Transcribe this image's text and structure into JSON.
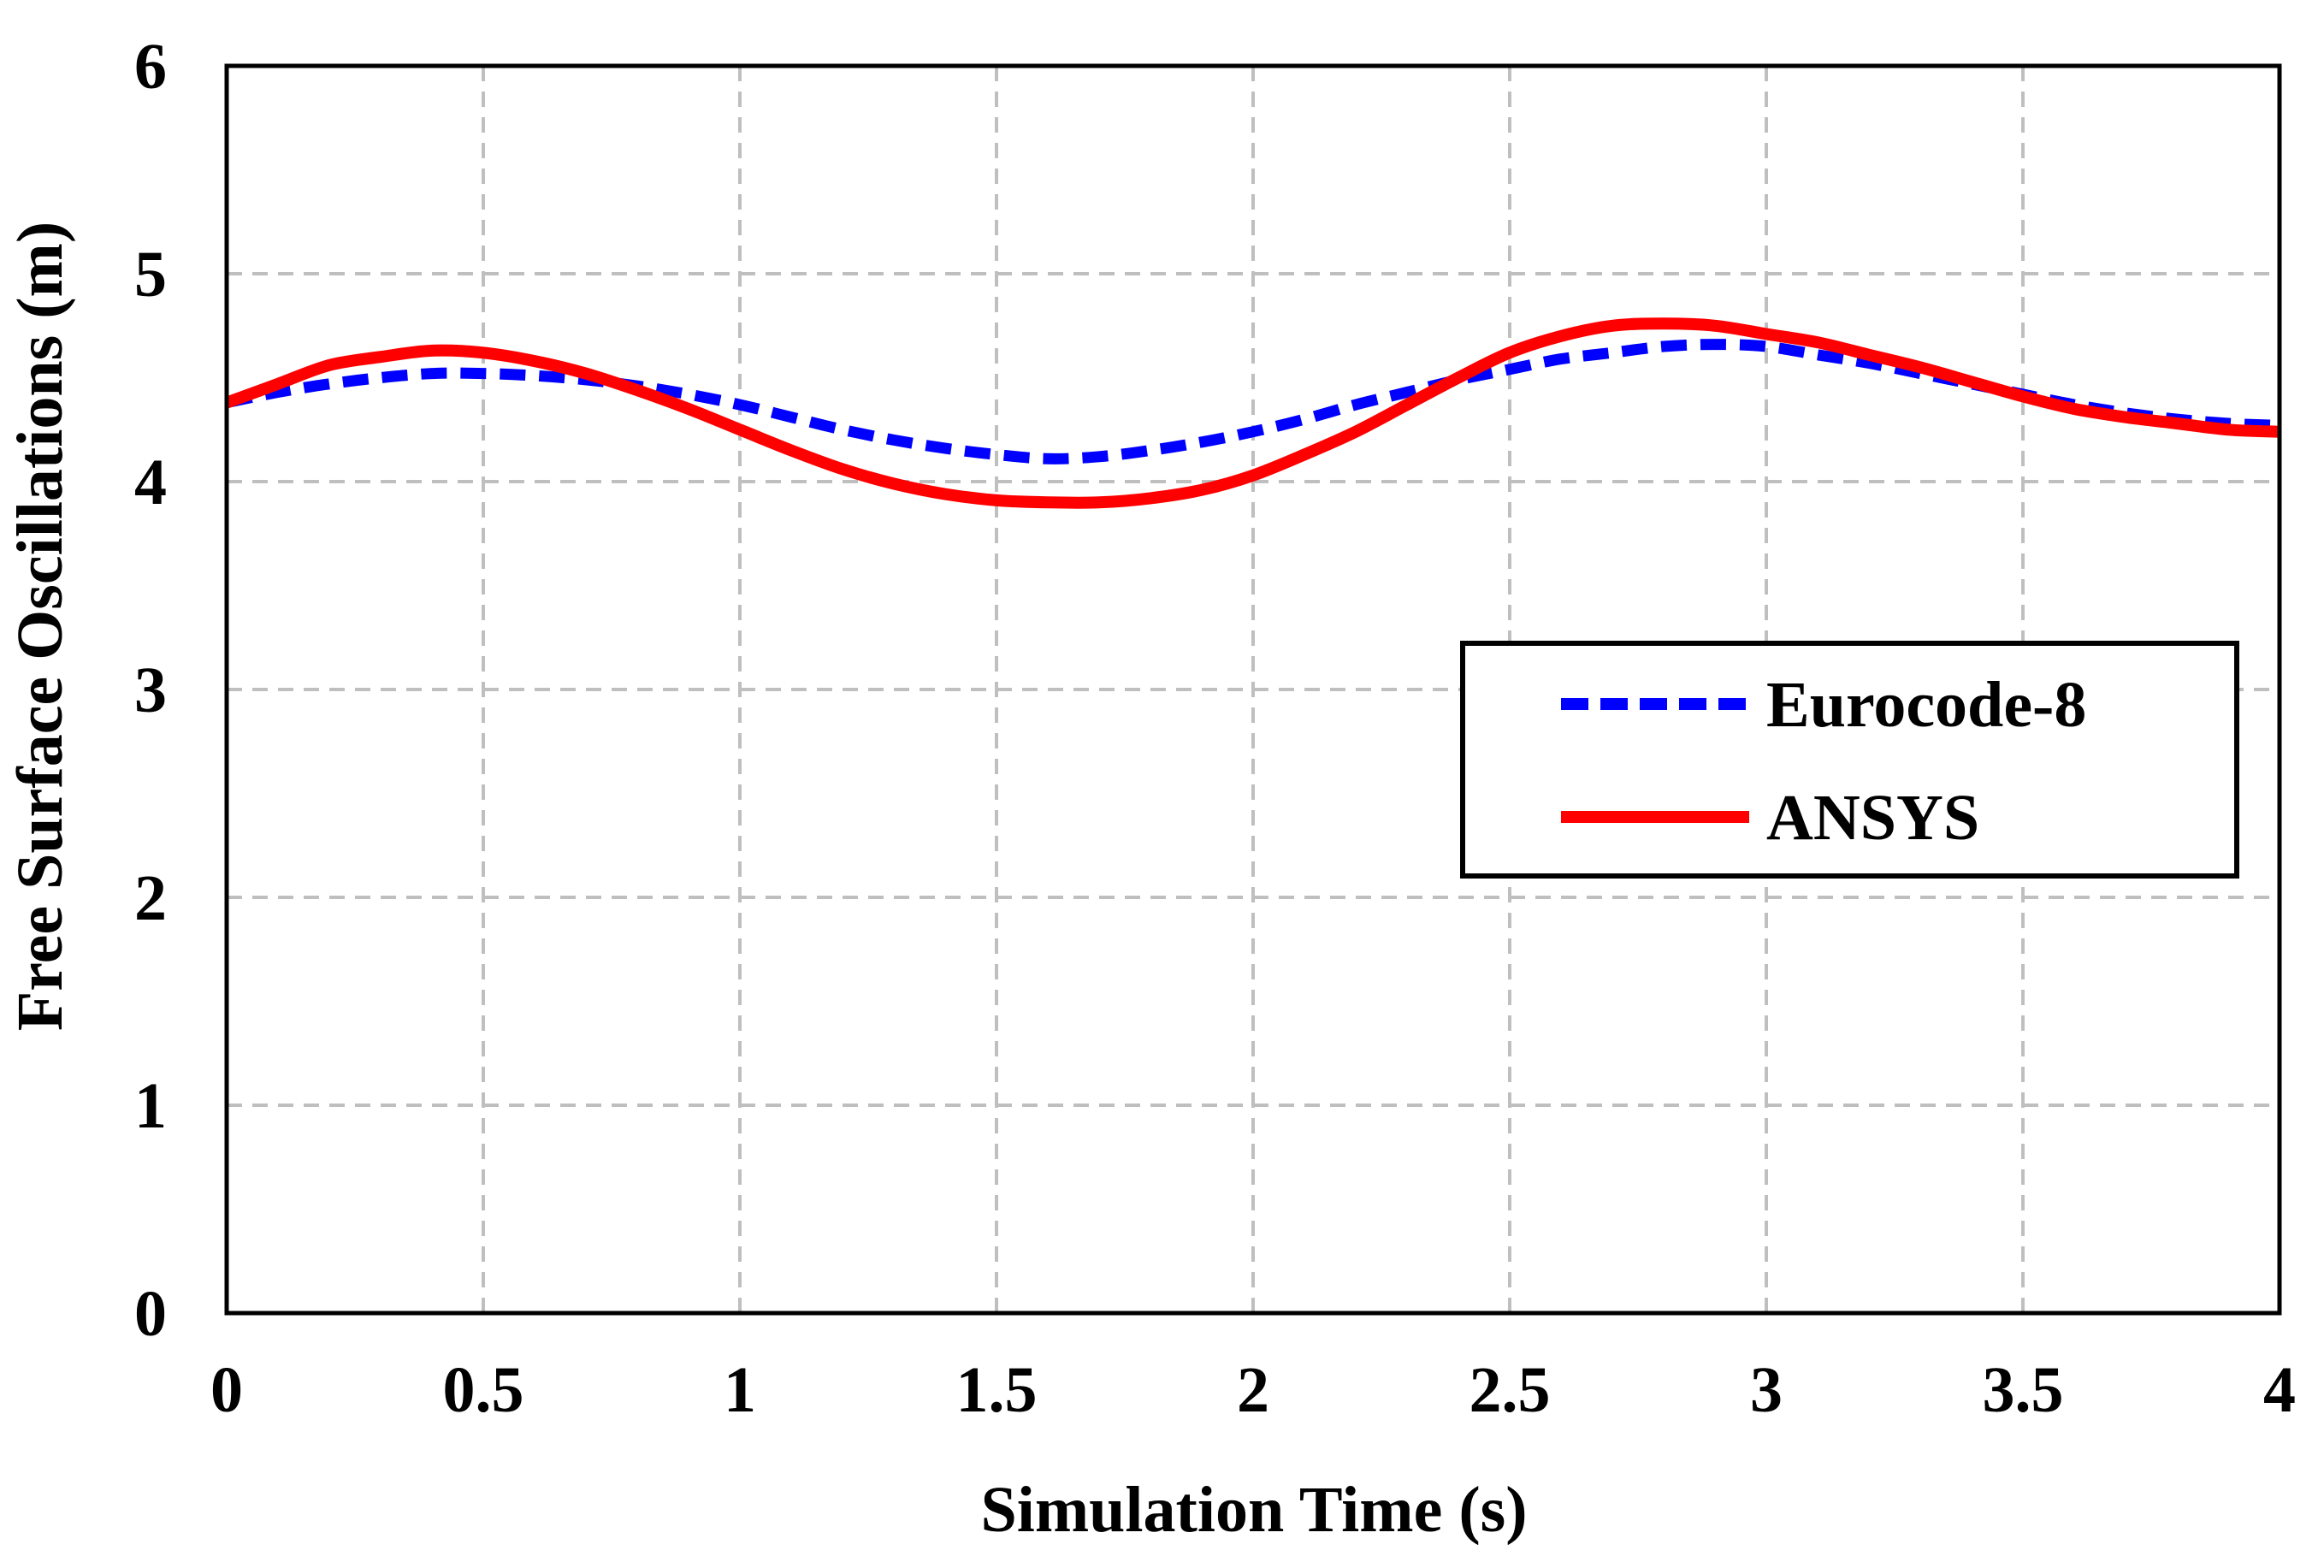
{
  "chart_data": {
    "type": "line",
    "title": "",
    "xlabel": "Simulation Time (s)",
    "ylabel": "Free Surface Oscillations (m)",
    "xlim": [
      0,
      4
    ],
    "ylim": [
      0,
      6
    ],
    "xticks": [
      0,
      0.5,
      1,
      1.5,
      2,
      2.5,
      3,
      3.5,
      4
    ],
    "yticks": [
      0,
      1,
      2,
      3,
      4,
      5,
      6
    ],
    "xtick_labels": [
      "0",
      "0.5",
      "1",
      "1.5",
      "2",
      "2.5",
      "3",
      "3.5",
      "4"
    ],
    "ytick_labels": [
      "0",
      "1",
      "2",
      "3",
      "4",
      "5",
      "6"
    ],
    "grid": true,
    "legend_position": "right",
    "series": [
      {
        "name": "Eurocode-8",
        "color": "#0000FF",
        "style": "dashed",
        "x": [
          0,
          0.1,
          0.2,
          0.3,
          0.4,
          0.5,
          0.6,
          0.7,
          0.8,
          0.9,
          1.0,
          1.1,
          1.2,
          1.3,
          1.4,
          1.5,
          1.6,
          1.7,
          1.8,
          1.9,
          2.0,
          2.1,
          2.2,
          2.3,
          2.4,
          2.5,
          2.6,
          2.7,
          2.8,
          2.9,
          3.0,
          3.1,
          3.2,
          3.3,
          3.4,
          3.5,
          3.6,
          3.7,
          3.8,
          3.9,
          4.0
        ],
        "y": [
          4.38,
          4.43,
          4.47,
          4.5,
          4.52,
          4.52,
          4.51,
          4.49,
          4.46,
          4.42,
          4.37,
          4.31,
          4.25,
          4.2,
          4.16,
          4.13,
          4.11,
          4.12,
          4.15,
          4.19,
          4.24,
          4.3,
          4.37,
          4.43,
          4.49,
          4.54,
          4.59,
          4.62,
          4.65,
          4.66,
          4.65,
          4.61,
          4.57,
          4.52,
          4.47,
          4.42,
          4.37,
          4.33,
          4.3,
          4.28,
          4.27
        ]
      },
      {
        "name": "ANSYS",
        "color": "#FF0000",
        "style": "solid",
        "x": [
          0,
          0.1,
          0.2,
          0.3,
          0.4,
          0.5,
          0.6,
          0.7,
          0.8,
          0.9,
          1.0,
          1.1,
          1.2,
          1.3,
          1.4,
          1.5,
          1.6,
          1.7,
          1.8,
          1.9,
          2.0,
          2.1,
          2.2,
          2.3,
          2.4,
          2.5,
          2.6,
          2.7,
          2.8,
          2.9,
          3.0,
          3.1,
          3.2,
          3.3,
          3.4,
          3.5,
          3.6,
          3.7,
          3.8,
          3.9,
          4.0
        ],
        "y": [
          4.38,
          4.47,
          4.56,
          4.6,
          4.63,
          4.62,
          4.58,
          4.52,
          4.44,
          4.35,
          4.25,
          4.15,
          4.06,
          3.99,
          3.94,
          3.91,
          3.9,
          3.9,
          3.92,
          3.96,
          4.03,
          4.13,
          4.24,
          4.37,
          4.5,
          4.62,
          4.7,
          4.75,
          4.76,
          4.75,
          4.71,
          4.67,
          4.61,
          4.55,
          4.48,
          4.41,
          4.35,
          4.31,
          4.28,
          4.25,
          4.24
        ]
      }
    ]
  }
}
